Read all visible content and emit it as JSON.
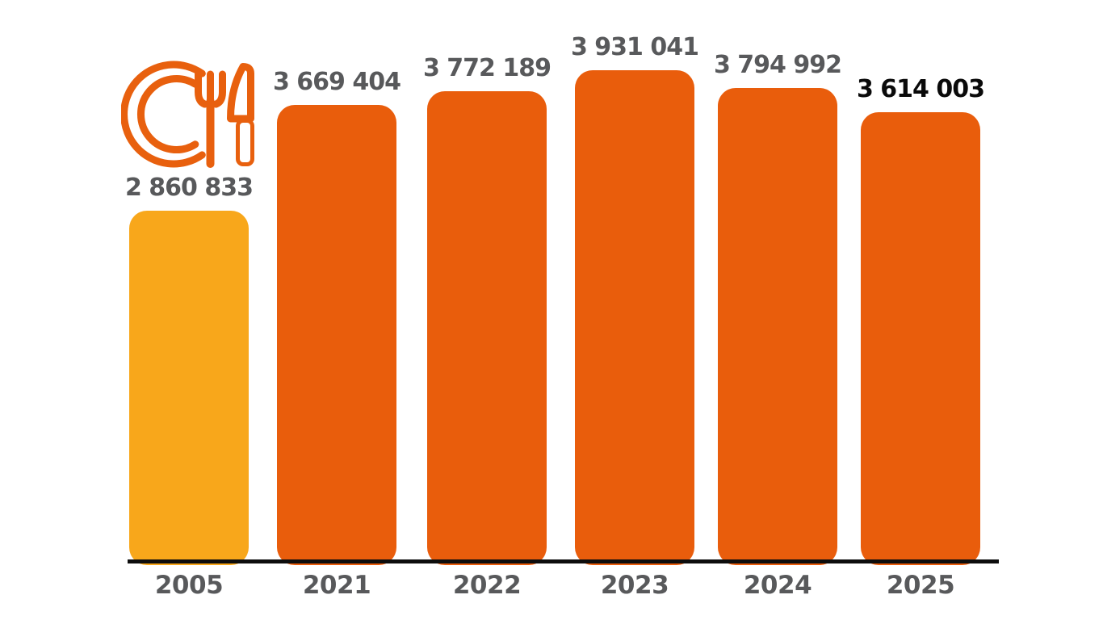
{
  "page": {
    "background": "#FFFFFF"
  },
  "icon": {
    "label": "plate-fork-knife",
    "color": "#E8600E"
  },
  "chart_data": {
    "type": "bar",
    "title": "",
    "xlabel": "",
    "ylabel": "",
    "categories": [
      "2005",
      "2021",
      "2022",
      "2023",
      "2024",
      "2025"
    ],
    "values": [
      2860833,
      3669404,
      3772189,
      3931041,
      3794992,
      3614003
    ],
    "value_labels": [
      "2 860 833",
      "3 669 404",
      "3 772 189",
      "3 931 041",
      "3 794 992",
      "3 614 003"
    ],
    "series": [
      {
        "name": "meals",
        "values": [
          2860833,
          3669404,
          3772189,
          3931041,
          3794992,
          3614003
        ]
      }
    ],
    "bar_colors": [
      "#F8A71B",
      "#E95D0C",
      "#E95D0C",
      "#E95D0C",
      "#E95D0C",
      "#E95D0C"
    ],
    "value_label_colors": [
      "#58595B",
      "#58595B",
      "#58595B",
      "#58595B",
      "#58595B",
      "#0A0A0A"
    ],
    "category_label_color": "#58595B",
    "axis_line_color": "#0D0D0D",
    "ylim": [
      160000,
      4000000
    ],
    "grid": false,
    "legend": "none"
  }
}
